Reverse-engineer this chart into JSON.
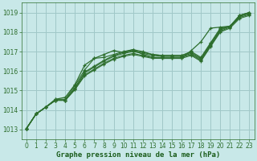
{
  "title": "Graphe pression niveau de la mer (hPa)",
  "bg_color": "#c8e8e8",
  "grid_color": "#a0c8c8",
  "line_color": "#2d6e2d",
  "marker_color": "#2d6e2d",
  "xlim": [
    -0.5,
    23.5
  ],
  "ylim": [
    1012.5,
    1019.5
  ],
  "yticks": [
    1013,
    1014,
    1015,
    1016,
    1017,
    1018,
    1019
  ],
  "xticks": [
    0,
    1,
    2,
    3,
    4,
    5,
    6,
    7,
    8,
    9,
    10,
    11,
    12,
    13,
    14,
    15,
    16,
    17,
    18,
    19,
    20,
    21,
    22,
    23
  ],
  "lines": [
    [
      1013.05,
      1013.8,
      1014.15,
      1014.5,
      1014.5,
      1015.05,
      1015.75,
      1016.05,
      1016.35,
      1016.6,
      1016.75,
      1016.85,
      1016.75,
      1016.65,
      1016.65,
      1016.65,
      1016.65,
      1016.8,
      1016.5,
      1017.25,
      1018.0,
      1018.2,
      1018.7,
      1018.85
    ],
    [
      1013.05,
      1013.8,
      1014.15,
      1014.5,
      1014.5,
      1015.05,
      1015.8,
      1016.1,
      1016.4,
      1016.65,
      1016.8,
      1016.9,
      1016.8,
      1016.7,
      1016.7,
      1016.7,
      1016.7,
      1016.85,
      1016.55,
      1017.3,
      1018.05,
      1018.25,
      1018.75,
      1018.9
    ],
    [
      1013.05,
      1013.8,
      1014.15,
      1014.5,
      1014.5,
      1015.1,
      1015.9,
      1016.2,
      1016.5,
      1016.75,
      1016.9,
      1017.0,
      1016.9,
      1016.8,
      1016.75,
      1016.75,
      1016.75,
      1016.9,
      1016.6,
      1017.35,
      1018.1,
      1018.3,
      1018.8,
      1018.95
    ],
    [
      1013.05,
      1013.8,
      1014.15,
      1014.5,
      1014.5,
      1015.15,
      1015.95,
      1016.25,
      1016.55,
      1016.8,
      1016.95,
      1017.05,
      1016.95,
      1016.85,
      1016.8,
      1016.8,
      1016.8,
      1016.95,
      1016.65,
      1017.4,
      1018.15,
      1018.3,
      1018.85,
      1019.0
    ],
    [
      1013.05,
      1013.8,
      1014.15,
      1014.55,
      1014.55,
      1015.25,
      1016.05,
      1016.65,
      1016.7,
      1016.85,
      1017.0,
      1017.1,
      1017.0,
      1016.85,
      1016.8,
      1016.8,
      1016.8,
      1017.0,
      1016.7,
      1017.45,
      1018.2,
      1018.3,
      1018.85,
      1019.0
    ]
  ],
  "outlier_line": [
    1013.05,
    1013.8,
    1014.15,
    1014.55,
    1014.65,
    1015.3,
    1016.3,
    1016.65,
    1016.85,
    1017.05,
    1016.95,
    1017.1,
    1016.85,
    1016.7,
    1016.65,
    1016.65,
    1016.65,
    1017.05,
    1017.5,
    1018.2,
    1018.25,
    1018.3,
    1018.85,
    1019.0
  ],
  "xlabel_color": "#1a5c1a",
  "tick_color": "#2d6e2d",
  "label_fontsize": 6.5,
  "tick_fontsize": 5.5
}
